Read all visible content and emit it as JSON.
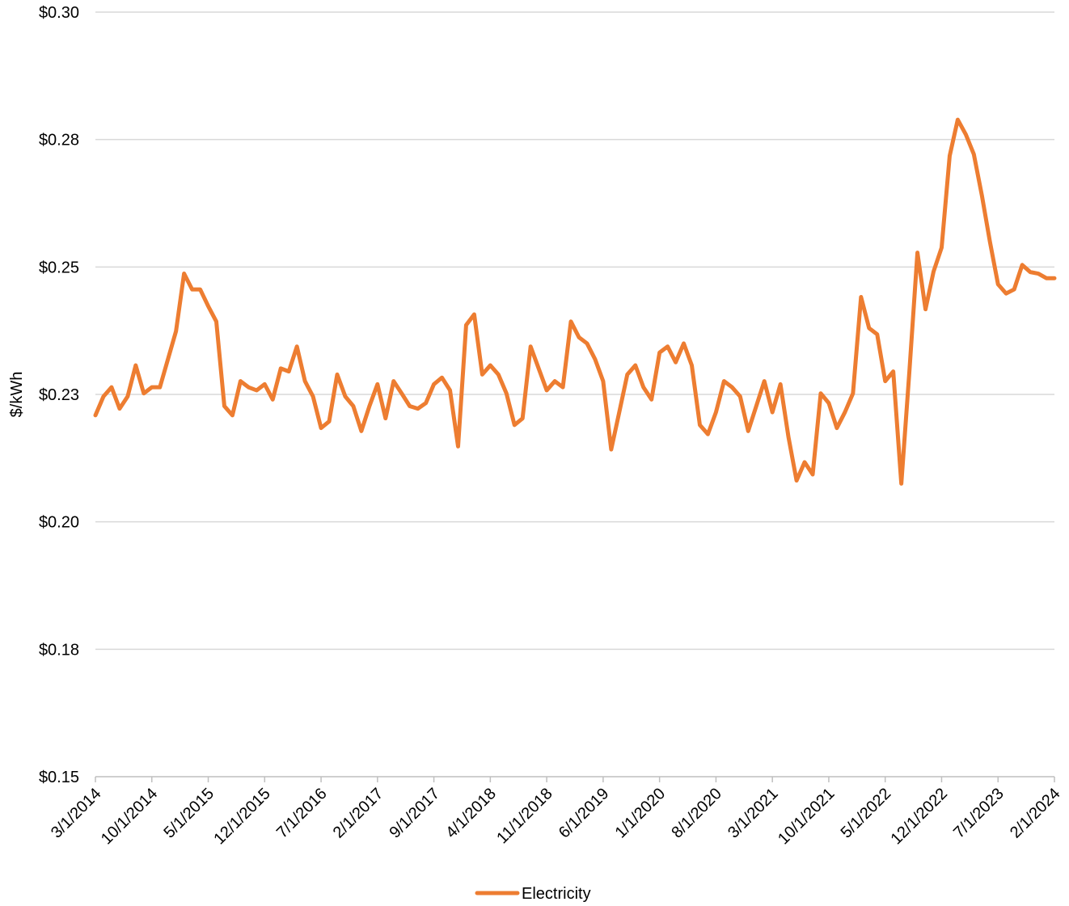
{
  "chart_data": {
    "type": "line",
    "title": "",
    "xlabel": "",
    "ylabel": "$/kWh",
    "ylim": [
      0.15,
      0.3
    ],
    "y_ticks": [
      "$0.15",
      "$0.18",
      "$0.20",
      "$0.23",
      "$0.25",
      "$0.28",
      "$0.30"
    ],
    "y_tick_values": [
      0.15,
      0.175,
      0.2,
      0.225,
      0.25,
      0.275,
      0.3
    ],
    "x_tick_labels": [
      "3/1/2014",
      "10/1/2014",
      "5/1/2015",
      "12/1/2015",
      "7/1/2016",
      "2/1/2017",
      "9/1/2017",
      "4/1/2018",
      "11/1/2018",
      "6/1/2019",
      "1/1/2020",
      "8/1/2020",
      "3/1/2021",
      "10/1/2021",
      "5/1/2022",
      "12/1/2022",
      "7/1/2023",
      "2/1/2024"
    ],
    "grid": true,
    "legend_position": "bottom",
    "colors": {
      "line": "#ED7D31",
      "grid": "#D9D9D9",
      "axis": "#BFBFBF"
    },
    "series": [
      {
        "name": "Electricity",
        "x_start": "3/1/2014",
        "x_end": "2/1/2024",
        "values": [
          0.2209,
          0.2246,
          0.2264,
          0.2222,
          0.2246,
          0.2307,
          0.2252,
          0.2264,
          0.2264,
          0.2319,
          0.2374,
          0.2487,
          0.2456,
          0.2456,
          0.2423,
          0.2393,
          0.2227,
          0.2209,
          0.2276,
          0.2264,
          0.2258,
          0.227,
          0.224,
          0.2301,
          0.2295,
          0.2344,
          0.2276,
          0.2246,
          0.2184,
          0.2197,
          0.2289,
          0.2246,
          0.2227,
          0.2178,
          0.2227,
          0.227,
          0.2203,
          0.2276,
          0.2252,
          0.2227,
          0.2222,
          0.2233,
          0.227,
          0.2283,
          0.2258,
          0.2148,
          0.2386,
          0.2407,
          0.2289,
          0.2307,
          0.2289,
          0.2252,
          0.219,
          0.2203,
          0.2344,
          0.2301,
          0.2258,
          0.2276,
          0.2264,
          0.2393,
          0.2362,
          0.235,
          0.2319,
          0.2276,
          0.2142,
          0.2215,
          0.2289,
          0.2307,
          0.2264,
          0.224,
          0.2332,
          0.2344,
          0.2313,
          0.235,
          0.2307,
          0.219,
          0.2172,
          0.2215,
          0.2276,
          0.2264,
          0.2246,
          0.2178,
          0.2227,
          0.2276,
          0.2215,
          0.227,
          0.2166,
          0.2081,
          0.2117,
          0.2093,
          0.2252,
          0.2233,
          0.2184,
          0.2215,
          0.2252,
          0.2441,
          0.238,
          0.2368,
          0.2276,
          0.2295,
          0.2075,
          0.2295,
          0.2528,
          0.2417,
          0.2491,
          0.2538,
          0.2718,
          0.2789,
          0.276,
          0.2721,
          0.264,
          0.2549,
          0.2466,
          0.2448,
          0.2456,
          0.2504,
          0.249,
          0.2487,
          0.2478,
          0.2478
        ]
      }
    ]
  }
}
